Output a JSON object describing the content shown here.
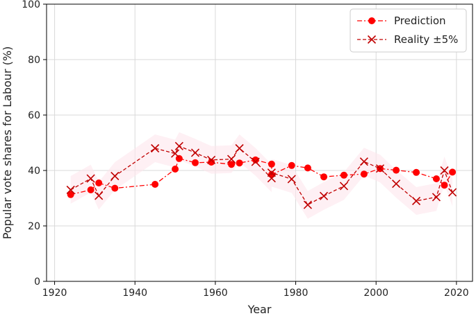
{
  "chart_data": {
    "type": "line",
    "xlabel": "Year",
    "ylabel": "Popular vote shares for Labour (%)",
    "xlim": [
      1918,
      2024
    ],
    "ylim": [
      0,
      100
    ],
    "xticks": [
      1920,
      1940,
      1960,
      1980,
      2000,
      2020
    ],
    "yticks": [
      0,
      20,
      40,
      60,
      80,
      100
    ],
    "grid": true,
    "legend_position": "top-right",
    "colors": {
      "prediction": "#ff0000",
      "reality": "#c00000",
      "band": "#fde6ec"
    },
    "series": [
      {
        "name": "Prediction",
        "marker": "circle",
        "x": [
          1924,
          1929,
          1931,
          1935,
          1945,
          1950,
          1951,
          1955,
          1959,
          1964,
          1966,
          1970,
          1974,
          1974,
          1979,
          1983,
          1987,
          1992,
          1997,
          2001,
          2005,
          2010,
          2015,
          2017,
          2019
        ],
        "y": [
          31.3,
          33.0,
          35.5,
          33.6,
          35.0,
          40.5,
          44.3,
          42.8,
          43.0,
          42.2,
          42.7,
          43.8,
          42.3,
          38.5,
          41.8,
          40.9,
          37.7,
          38.3,
          38.7,
          40.7,
          40.1,
          39.3,
          37.0,
          34.7,
          39.4
        ]
      },
      {
        "name": "Reality ±5%",
        "marker": "x",
        "x": [
          1924,
          1929,
          1931,
          1935,
          1945,
          1950,
          1951,
          1955,
          1959,
          1964,
          1966,
          1970,
          1974,
          1974,
          1979,
          1983,
          1987,
          1992,
          1997,
          2001,
          2005,
          2010,
          2015,
          2017,
          2019
        ],
        "y": [
          33.0,
          37.1,
          30.9,
          38.0,
          48.0,
          46.1,
          48.8,
          46.4,
          43.8,
          44.1,
          48.0,
          43.1,
          37.2,
          39.2,
          36.9,
          27.6,
          30.8,
          34.4,
          43.2,
          40.7,
          35.2,
          29.0,
          30.4,
          40.0,
          32.1
        ]
      }
    ]
  }
}
